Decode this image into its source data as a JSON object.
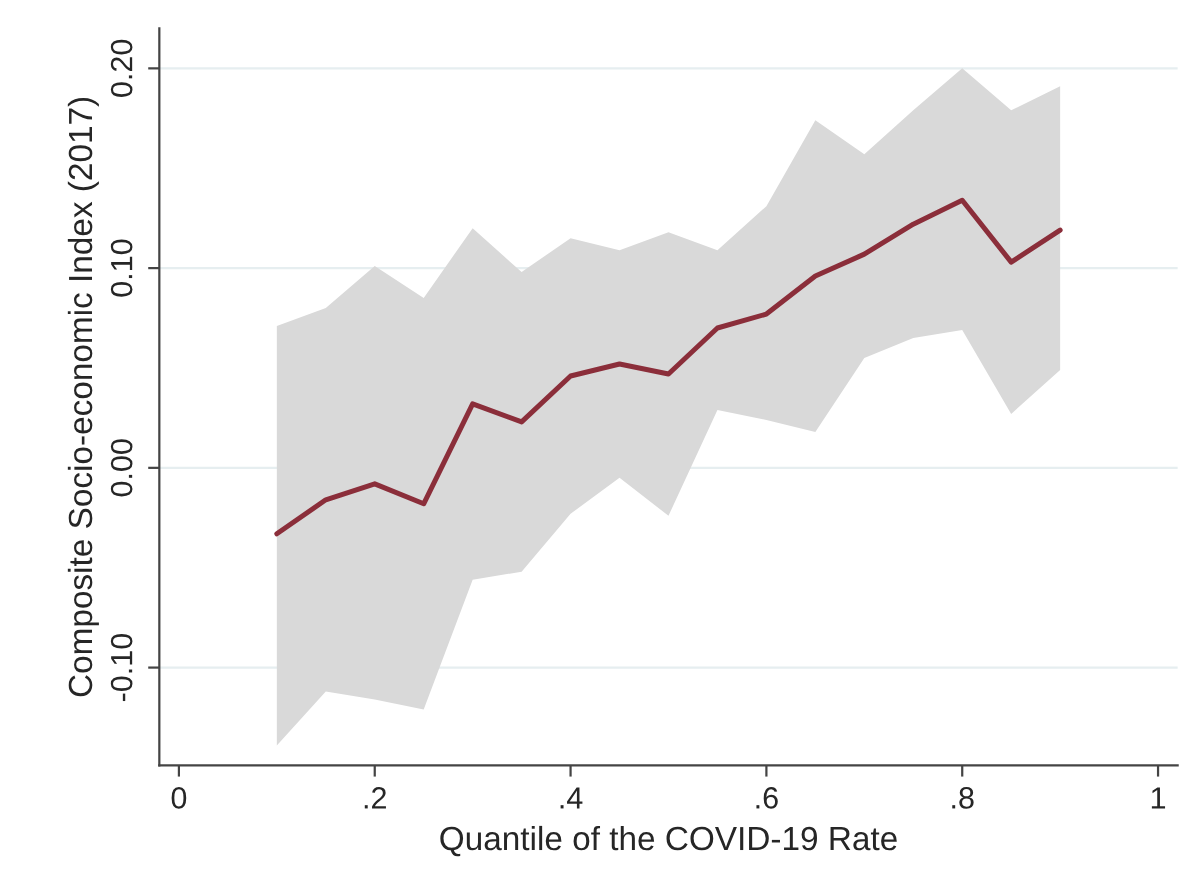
{
  "chart_data": {
    "type": "line",
    "xlabel": "Quantile of the COVID-19 Rate",
    "ylabel": "Composite Socio-economic Index (2017)",
    "x": [
      0.1,
      0.15,
      0.2,
      0.25,
      0.3,
      0.35,
      0.4,
      0.45,
      0.5,
      0.55,
      0.6,
      0.65,
      0.7,
      0.75,
      0.8,
      0.85,
      0.9
    ],
    "series": [
      {
        "color": "#8b2e3a",
        "values": [
          -0.033,
          -0.016,
          -0.008,
          -0.018,
          0.032,
          0.023,
          0.046,
          0.052,
          0.047,
          0.07,
          0.077,
          0.096,
          0.107,
          0.122,
          0.134,
          0.103,
          0.119
        ],
        "lower": [
          -0.139,
          -0.112,
          -0.116,
          -0.121,
          -0.056,
          -0.052,
          -0.023,
          -0.005,
          -0.024,
          0.029,
          0.024,
          0.018,
          0.055,
          0.065,
          0.069,
          0.027,
          0.049
        ],
        "upper": [
          0.071,
          0.08,
          0.101,
          0.085,
          0.12,
          0.098,
          0.115,
          0.109,
          0.118,
          0.109,
          0.131,
          0.174,
          0.157,
          0.179,
          0.2,
          0.179,
          0.191
        ]
      }
    ],
    "xlim": [
      -0.02,
      1.02
    ],
    "ylim": [
      -0.149,
      0.22
    ],
    "xticks": [
      0,
      {
        "value": 0.2,
        "label": ".2"
      },
      {
        "value": 0.4,
        "label": ".4"
      },
      {
        "value": 0.6,
        "label": ".6"
      },
      {
        "value": 0.8,
        "label": ".8"
      },
      1
    ],
    "yticks": [
      {
        "value": -0.1,
        "label": "-0.10"
      },
      {
        "value": 0.0,
        "label": "0.00"
      },
      {
        "value": 0.1,
        "label": "0.10"
      },
      {
        "value": 0.2,
        "label": "0.20"
      }
    ],
    "grid": "y",
    "marker": "none",
    "line_style": "solid",
    "legend": false
  }
}
